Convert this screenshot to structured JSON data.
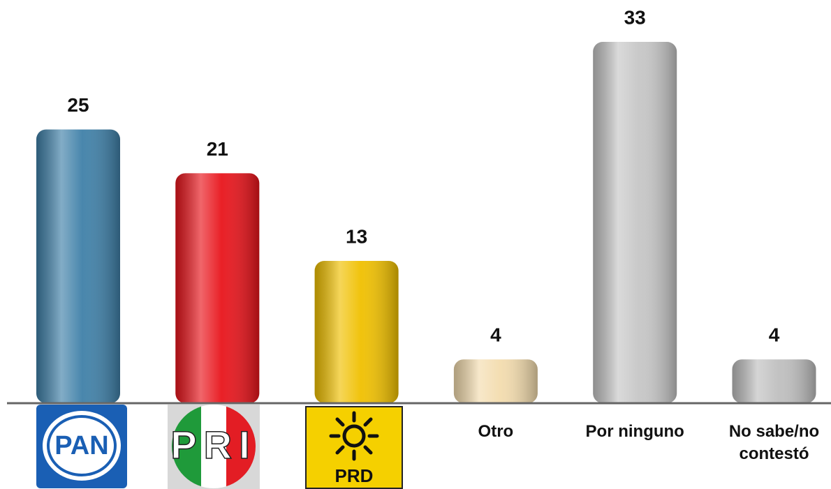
{
  "chart_data": {
    "type": "bar",
    "categories": [
      "PAN",
      "PRI",
      "PRD",
      "Otro",
      "Por ninguno",
      "No sabe/no contestó"
    ],
    "values": [
      25,
      21,
      13,
      4,
      33,
      4
    ],
    "colors": [
      "#3f80a8",
      "#e8141b",
      "#f0c000",
      "#f3dcae",
      "#c6c6c6",
      "#bfbfbf"
    ]
  }
}
